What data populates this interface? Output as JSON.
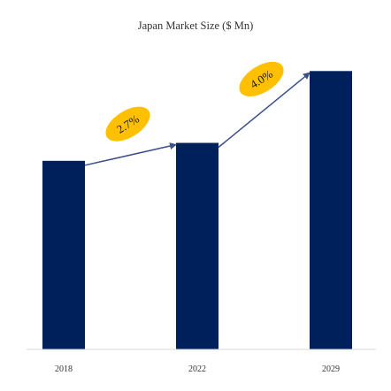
{
  "chart_data": {
    "type": "bar",
    "title": "Japan Market Size ($ Mn)",
    "categories": [
      "2018",
      "2022",
      "2029"
    ],
    "values": [
      210,
      230,
      310
    ],
    "ylim": [
      0,
      330
    ],
    "grid": false,
    "legend": "none",
    "bar_color": "#00205b",
    "arrow_color": "#3b4f8a",
    "annotations": [
      {
        "from": "2018",
        "to": "2022",
        "label": "2.7%",
        "color": "#ffc000"
      },
      {
        "from": "2022",
        "to": "2029",
        "label": "4.0%",
        "color": "#ffc000"
      }
    ]
  }
}
